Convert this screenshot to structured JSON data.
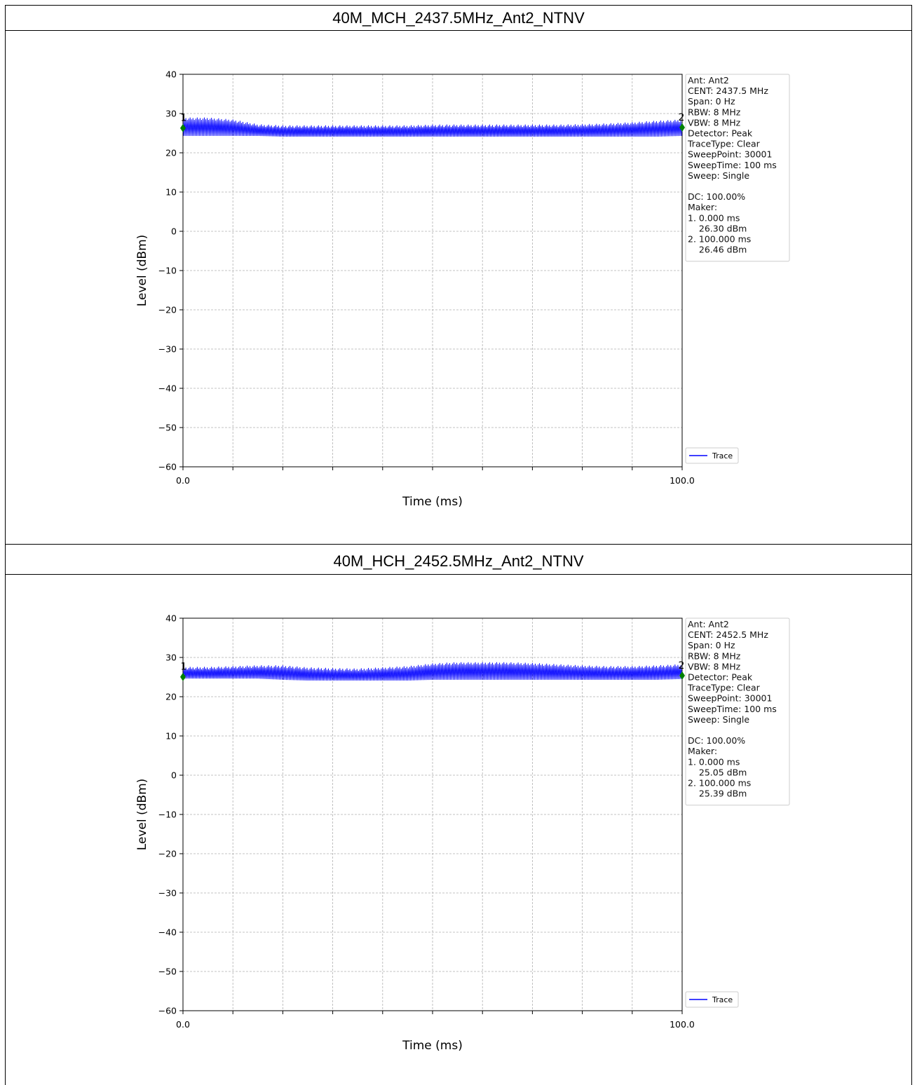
{
  "chart_data": [
    {
      "type": "line",
      "title": "40M_MCH_2437.5MHz_Ant2_NTNV",
      "xlabel": "Time (ms)",
      "ylabel": "Level (dBm)",
      "xlim": [
        0.0,
        100.0
      ],
      "ylim": [
        -60,
        40
      ],
      "x_ticks": [
        "0.0",
        "100.0"
      ],
      "y_ticks": [
        "40",
        "30",
        "20",
        "10",
        "0",
        "−10",
        "−20",
        "−30",
        "−40",
        "−50",
        "−60"
      ],
      "grid": true,
      "legend": {
        "placement": "bottom-right",
        "entries": [
          "Trace"
        ]
      },
      "series": [
        {
          "name": "Trace",
          "color": "#0000ff",
          "x": [
            0,
            5,
            10,
            15,
            20,
            25,
            30,
            35,
            40,
            45,
            50,
            55,
            60,
            65,
            70,
            75,
            80,
            85,
            90,
            95,
            100
          ],
          "band_low": [
            24.0,
            24.0,
            24.0,
            24.0,
            23.8,
            23.8,
            23.8,
            23.8,
            23.8,
            23.8,
            23.8,
            23.8,
            23.8,
            23.8,
            23.8,
            23.8,
            23.8,
            23.8,
            23.8,
            23.8,
            24.0
          ],
          "band_high": [
            29.0,
            29.0,
            28.5,
            27.3,
            27.0,
            27.0,
            27.0,
            27.0,
            27.0,
            27.0,
            27.2,
            27.2,
            27.2,
            27.2,
            27.2,
            27.2,
            27.3,
            27.5,
            27.8,
            28.2,
            28.5
          ]
        }
      ],
      "markers": [
        {
          "label": "1",
          "x": 0.0,
          "y": 26.3
        },
        {
          "label": "2",
          "x": 100.0,
          "y": 26.46
        }
      ],
      "info_lines": [
        "Ant: Ant2",
        "CENT: 2437.5 MHz",
        "Span: 0 Hz",
        "RBW: 8 MHz",
        "VBW: 8 MHz",
        "Detector: Peak",
        "TraceType: Clear",
        "SweepPoint: 30001",
        "SweepTime: 100 ms",
        "Sweep: Single",
        "",
        "DC: 100.00%",
        "Maker:",
        "1. 0.000 ms",
        "    26.30 dBm",
        "2. 100.000 ms",
        "    26.46 dBm"
      ]
    },
    {
      "type": "line",
      "title": "40M_HCH_2452.5MHz_Ant2_NTNV",
      "xlabel": "Time (ms)",
      "ylabel": "Level (dBm)",
      "xlim": [
        0.0,
        100.0
      ],
      "ylim": [
        -60,
        40
      ],
      "x_ticks": [
        "0.0",
        "100.0"
      ],
      "y_ticks": [
        "40",
        "30",
        "20",
        "10",
        "0",
        "−10",
        "−20",
        "−30",
        "−40",
        "−50",
        "−60"
      ],
      "grid": true,
      "legend": {
        "placement": "bottom-right",
        "entries": [
          "Trace"
        ]
      },
      "series": [
        {
          "name": "Trace",
          "color": "#0000ff",
          "x": [
            0,
            5,
            10,
            15,
            20,
            25,
            30,
            35,
            40,
            45,
            50,
            55,
            60,
            65,
            70,
            75,
            80,
            85,
            90,
            95,
            100
          ],
          "band_low": [
            24.3,
            24.3,
            24.3,
            24.3,
            24.0,
            23.8,
            23.8,
            23.8,
            23.8,
            23.8,
            24.0,
            24.0,
            24.0,
            24.0,
            24.0,
            24.0,
            24.0,
            24.0,
            24.0,
            24.0,
            24.2
          ],
          "band_high": [
            27.6,
            27.6,
            27.8,
            28.0,
            28.0,
            27.5,
            27.3,
            27.2,
            27.5,
            27.8,
            28.5,
            28.8,
            28.8,
            28.8,
            28.6,
            28.3,
            28.0,
            27.8,
            27.8,
            28.0,
            28.3
          ]
        }
      ],
      "markers": [
        {
          "label": "1",
          "x": 0.0,
          "y": 25.05
        },
        {
          "label": "2",
          "x": 100.0,
          "y": 25.39
        }
      ],
      "info_lines": [
        "Ant: Ant2",
        "CENT: 2452.5 MHz",
        "Span: 0 Hz",
        "RBW: 8 MHz",
        "VBW: 8 MHz",
        "Detector: Peak",
        "TraceType: Clear",
        "SweepPoint: 30001",
        "SweepTime: 100 ms",
        "Sweep: Single",
        "",
        "DC: 100.00%",
        "Maker:",
        "1. 0.000 ms",
        "    25.05 dBm",
        "2. 100.000 ms",
        "    25.39 dBm"
      ]
    }
  ],
  "colors": {
    "trace": "#0000ff",
    "marker": "#008000",
    "grid": "#b0b0b0"
  }
}
